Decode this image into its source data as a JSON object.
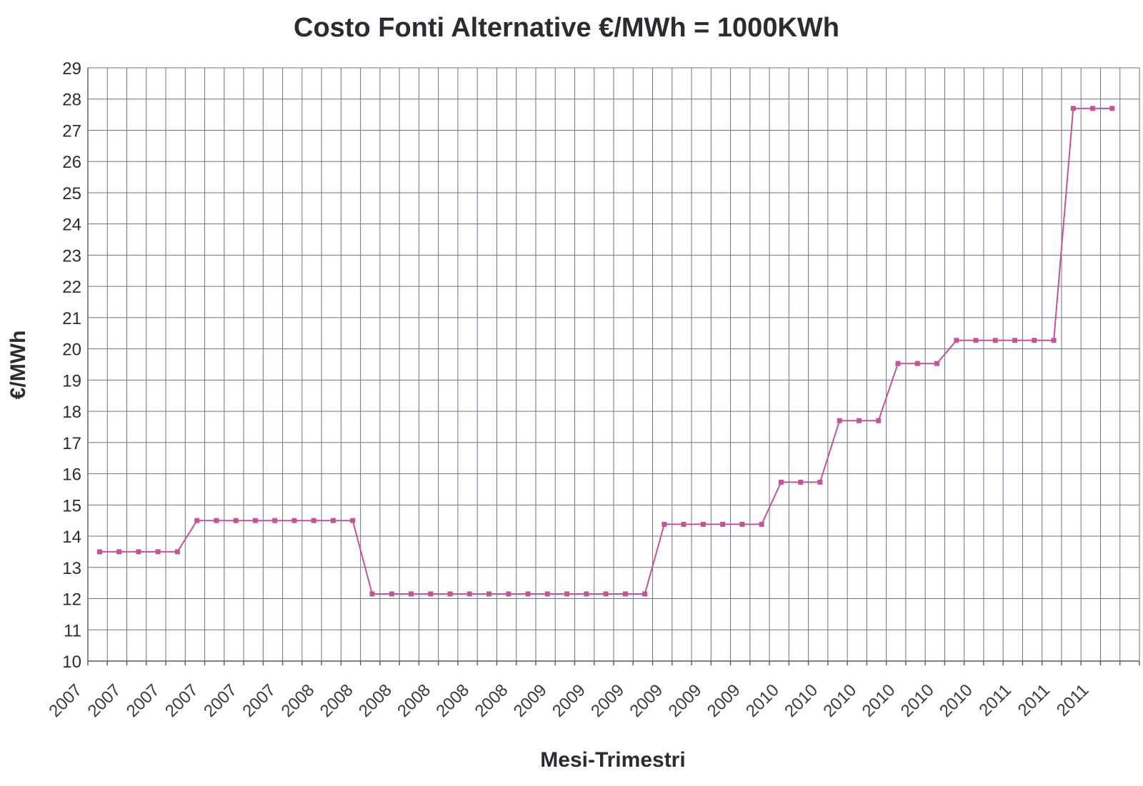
{
  "chart_data": {
    "type": "line",
    "title": "Costo Fonti  Alternative €/MWh = 1000KWh",
    "xlabel": "Mesi-Trimestri",
    "ylabel": "€/MWh",
    "ylim": [
      10,
      29
    ],
    "yticks": [
      10,
      11,
      12,
      13,
      14,
      15,
      16,
      17,
      18,
      19,
      20,
      21,
      22,
      23,
      24,
      25,
      26,
      27,
      28,
      29
    ],
    "xtick_labels": [
      "2007",
      "2007",
      "2007",
      "2007",
      "2007",
      "2007",
      "2008",
      "2008",
      "2008",
      "2008",
      "2008",
      "2008",
      "2009",
      "2009",
      "2009",
      "2009",
      "2009",
      "2009",
      "2010",
      "2010",
      "2010",
      "2010",
      "2010",
      "2010",
      "2011",
      "2011",
      "2011"
    ],
    "grid": true,
    "legend": "none",
    "colors": {
      "series": "#c2549a",
      "grid": "#6f7386",
      "text": "#2b2b33"
    },
    "series": [
      {
        "values": [
          13.5,
          13.5,
          13.5,
          13.5,
          13.5,
          14.5,
          14.5,
          14.5,
          14.5,
          14.5,
          14.5,
          14.5,
          14.5,
          14.5,
          12.15,
          12.15,
          12.15,
          12.15,
          12.15,
          12.15,
          12.15,
          12.15,
          12.15,
          12.15,
          12.15,
          12.15,
          12.15,
          12.15,
          12.15,
          14.38,
          14.38,
          14.38,
          14.38,
          14.38,
          14.38,
          15.73,
          15.73,
          15.73,
          17.7,
          17.7,
          17.7,
          19.53,
          19.53,
          19.53,
          20.27,
          20.27,
          20.27,
          20.27,
          20.27,
          20.27,
          27.7,
          27.7,
          27.7
        ]
      }
    ]
  }
}
